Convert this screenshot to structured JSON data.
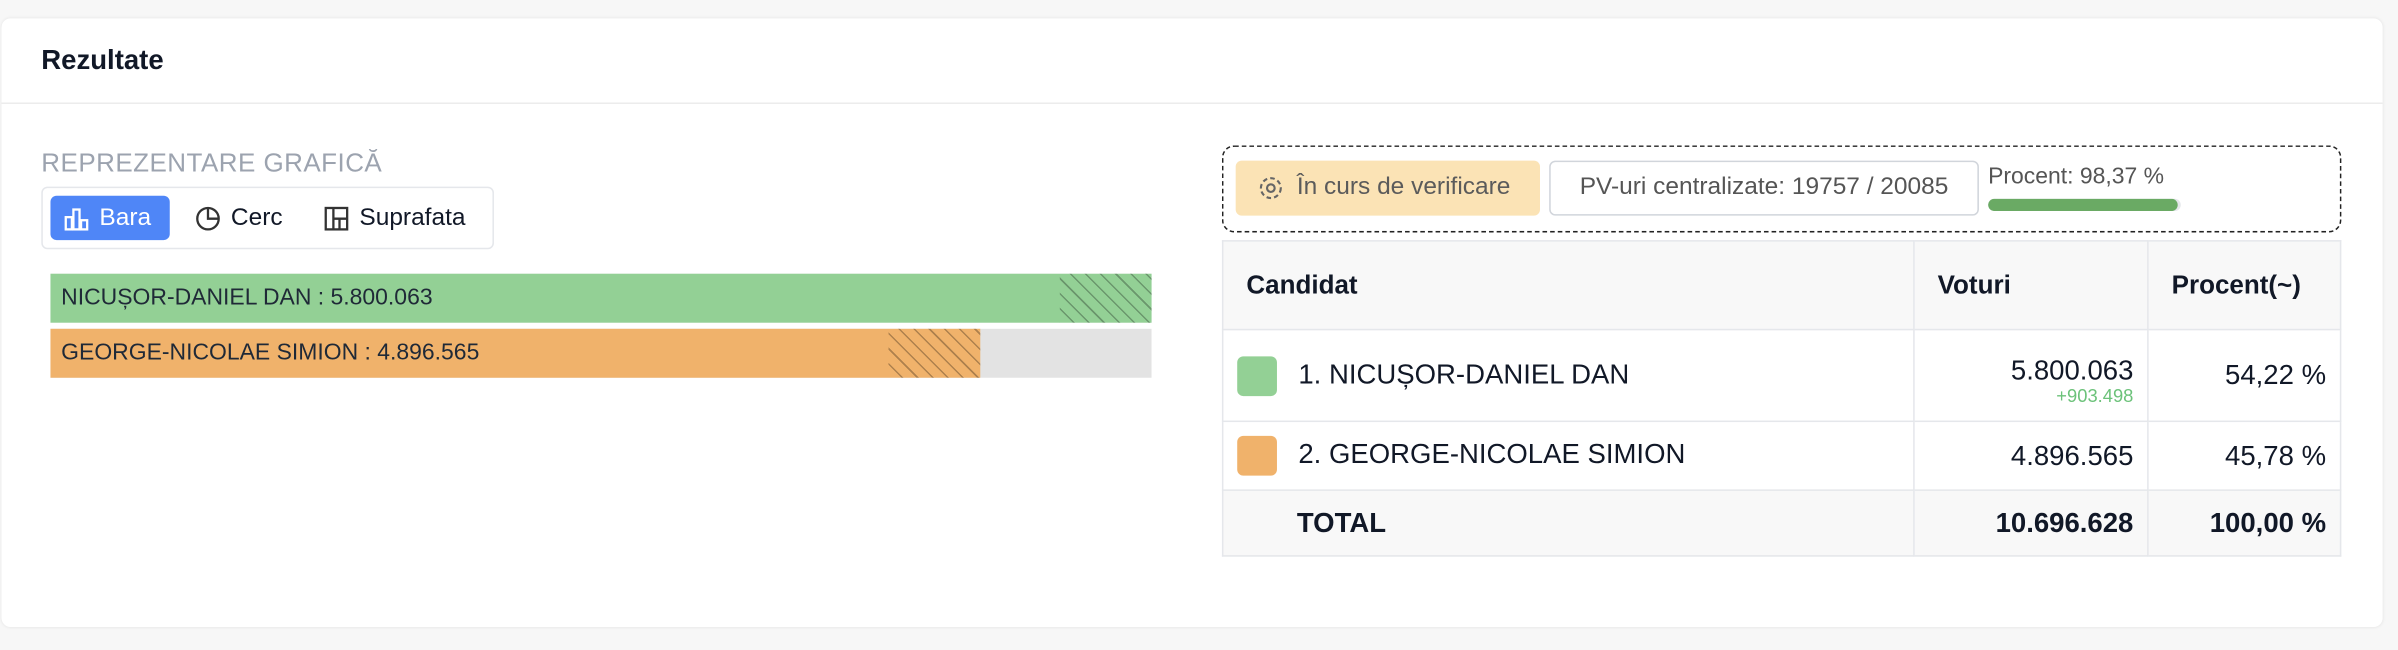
{
  "header": {
    "title": "Rezultate"
  },
  "graphic": {
    "label": "REPREZENTARE GRAFICĂ",
    "tabs": [
      "Bara",
      "Cerc",
      "Suprafata"
    ],
    "bars": [
      {
        "label": "NICUȘOR-DANIEL DAN : 5.800.063",
        "value": 5800063,
        "color": "#93d095"
      },
      {
        "label": "GEORGE-NICOLAE SIMION : 4.896.565",
        "value": 4896565,
        "color": "#f0b26b"
      }
    ]
  },
  "status": {
    "badge": "În curs de verificare",
    "counted": "PV-uri centralizate: 19757 / 20085",
    "progress": {
      "label": "Procent: 98,37 %",
      "value": 98.37
    }
  },
  "table": {
    "headers": [
      "Candidat",
      "Voturi",
      "Procent(~)"
    ],
    "rows": [
      {
        "candidate": "1. NICUȘOR-DANIEL DAN",
        "votes": "5.800.063",
        "delta": "+903.498",
        "percent": "54,22 %",
        "color": "#93d095"
      },
      {
        "candidate": "2. GEORGE-NICOLAE SIMION",
        "votes": "4.896.565",
        "percent": "45,78 %",
        "color": "#f0b26b"
      }
    ],
    "total": {
      "label": "TOTAL",
      "votes": "10.696.628",
      "percent": "100,00 %"
    }
  }
}
